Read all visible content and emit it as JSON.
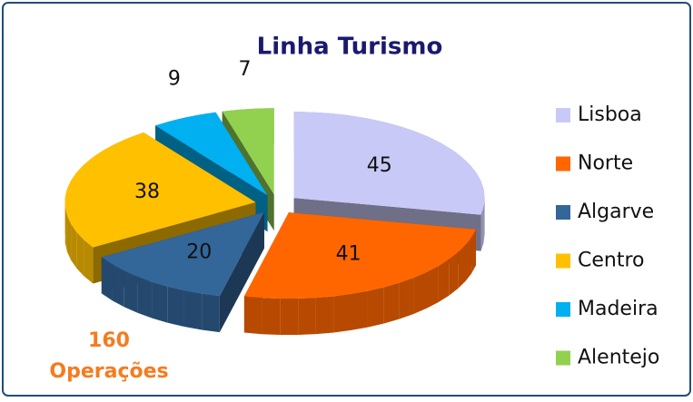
{
  "chart_data": {
    "type": "pie3d",
    "title": "Linha Turismo",
    "categories": [
      "Lisboa",
      "Norte",
      "Algarve",
      "Centro",
      "Madeira",
      "Alentejo"
    ],
    "values": [
      45,
      41,
      20,
      38,
      9,
      7
    ],
    "colors": [
      "#c9c9f7",
      "#ff6600",
      "#336699",
      "#ffc000",
      "#00b0f0",
      "#92d050"
    ],
    "annotation": [
      "160",
      "Operações"
    ],
    "legend": "right"
  }
}
